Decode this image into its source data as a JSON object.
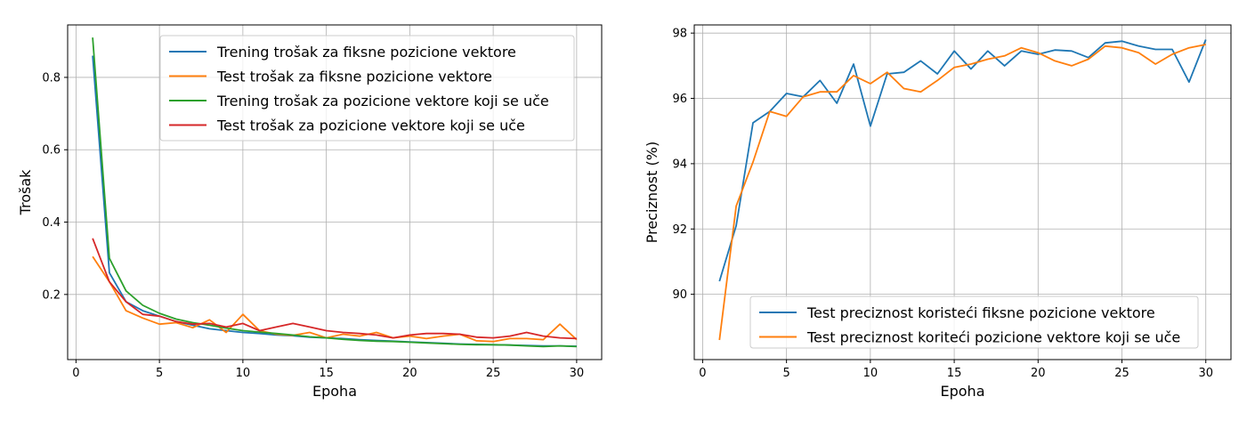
{
  "chart_data": [
    {
      "type": "line",
      "title": "",
      "xlabel": "Epoha",
      "ylabel": "Trošak",
      "xlim": [
        -0.5,
        31.5
      ],
      "ylim": [
        0.02,
        0.945
      ],
      "xticks": [
        0,
        5,
        10,
        15,
        20,
        25,
        30
      ],
      "xtick_labels": [
        "0",
        "5",
        "10",
        "15",
        "20",
        "25",
        "30"
      ],
      "yticks": [
        0.2,
        0.4,
        0.6,
        0.8
      ],
      "ytick_labels": [
        "0.2",
        "0.4",
        "0.6",
        "0.8"
      ],
      "grid": true,
      "legend": "top-right",
      "x": [
        1,
        2,
        3,
        4,
        5,
        6,
        7,
        8,
        9,
        10,
        11,
        12,
        13,
        14,
        15,
        16,
        17,
        18,
        19,
        20,
        21,
        22,
        23,
        24,
        25,
        26,
        27,
        28,
        29,
        30
      ],
      "series": [
        {
          "name": "Trening trošak za fiksne pozicione vektore",
          "color": "#1f77b4",
          "values": [
            0.86,
            0.26,
            0.18,
            0.155,
            0.14,
            0.125,
            0.115,
            0.105,
            0.1,
            0.095,
            0.092,
            0.088,
            0.086,
            0.082,
            0.08,
            0.078,
            0.075,
            0.073,
            0.071,
            0.069,
            0.067,
            0.065,
            0.063,
            0.062,
            0.061,
            0.06,
            0.059,
            0.058,
            0.058,
            0.057
          ]
        },
        {
          "name": "Test trošak za fiksne pozicione vektore",
          "color": "#ff7f0e",
          "values": [
            0.305,
            0.235,
            0.155,
            0.135,
            0.118,
            0.122,
            0.108,
            0.13,
            0.095,
            0.145,
            0.1,
            0.09,
            0.087,
            0.095,
            0.08,
            0.09,
            0.085,
            0.095,
            0.08,
            0.085,
            0.078,
            0.085,
            0.09,
            0.072,
            0.07,
            0.078,
            0.078,
            0.075,
            0.118,
            0.075
          ]
        },
        {
          "name": "Trening trošak za pozicione vektore koji se uče",
          "color": "#2ca02c",
          "values": [
            0.91,
            0.3,
            0.21,
            0.17,
            0.148,
            0.132,
            0.122,
            0.115,
            0.107,
            0.1,
            0.096,
            0.092,
            0.088,
            0.083,
            0.08,
            0.076,
            0.073,
            0.071,
            0.07,
            0.068,
            0.066,
            0.064,
            0.062,
            0.061,
            0.061,
            0.06,
            0.058,
            0.056,
            0.058,
            0.056
          ]
        },
        {
          "name": "Test trošak za pozicione vektore koji se uče",
          "color": "#d62728",
          "values": [
            0.355,
            0.235,
            0.18,
            0.145,
            0.14,
            0.125,
            0.118,
            0.12,
            0.11,
            0.12,
            0.1,
            0.11,
            0.12,
            0.11,
            0.1,
            0.095,
            0.092,
            0.088,
            0.08,
            0.088,
            0.092,
            0.092,
            0.09,
            0.082,
            0.08,
            0.085,
            0.095,
            0.085,
            0.08,
            0.078
          ]
        }
      ]
    },
    {
      "type": "line",
      "title": "",
      "xlabel": "Epoha",
      "ylabel": "Preciznost (%)",
      "xlim": [
        -0.5,
        31.5
      ],
      "ylim": [
        88.0,
        98.25
      ],
      "xticks": [
        0,
        5,
        10,
        15,
        20,
        25,
        30
      ],
      "xtick_labels": [
        "0",
        "5",
        "10",
        "15",
        "20",
        "25",
        "30"
      ],
      "yticks": [
        90,
        92,
        94,
        96,
        98
      ],
      "ytick_labels": [
        "90",
        "92",
        "94",
        "96",
        "98"
      ],
      "grid": true,
      "legend": "lower-right",
      "x": [
        1,
        2,
        3,
        4,
        5,
        6,
        7,
        8,
        9,
        10,
        11,
        12,
        13,
        14,
        15,
        16,
        17,
        18,
        19,
        20,
        21,
        22,
        23,
        24,
        25,
        26,
        27,
        28,
        29,
        30
      ],
      "series": [
        {
          "name": "Test preciznost koristeći fiksne pozicione vektore",
          "color": "#1f77b4",
          "values": [
            90.4,
            92.1,
            95.25,
            95.6,
            96.15,
            96.05,
            96.55,
            95.85,
            97.05,
            95.15,
            96.75,
            96.8,
            97.15,
            96.75,
            97.45,
            96.9,
            97.45,
            97.0,
            97.45,
            97.35,
            97.48,
            97.45,
            97.25,
            97.7,
            97.75,
            97.6,
            97.5,
            97.5,
            96.5,
            97.8
          ]
        },
        {
          "name": "Test preciznost koriteći pozicione vektore koji se uče",
          "color": "#ff7f0e",
          "values": [
            88.6,
            92.7,
            94.05,
            95.6,
            95.45,
            96.05,
            96.2,
            96.2,
            96.7,
            96.45,
            96.8,
            96.3,
            96.2,
            96.55,
            96.95,
            97.05,
            97.2,
            97.3,
            97.55,
            97.4,
            97.15,
            97.0,
            97.2,
            97.6,
            97.55,
            97.4,
            97.05,
            97.35,
            97.55,
            97.65
          ]
        }
      ]
    }
  ]
}
